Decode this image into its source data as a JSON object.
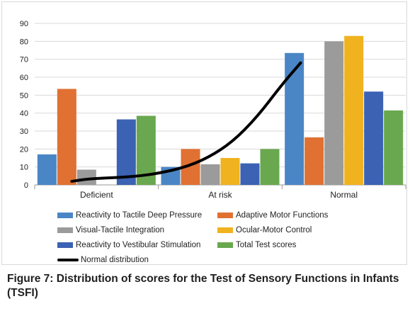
{
  "chart_data": {
    "type": "bar",
    "categories": [
      "Deficient",
      "At risk",
      "Normal"
    ],
    "ylim": [
      0,
      90
    ],
    "yticks": [
      0,
      10,
      20,
      30,
      40,
      50,
      60,
      70,
      80,
      90
    ],
    "ylabel": "",
    "series": [
      {
        "name": "Reactivity to Tactile Deep Pressure",
        "color": "#4a86c6",
        "values": [
          17,
          10,
          73.5
        ]
      },
      {
        "name": "Adaptive Motor Functions",
        "color": "#e07132",
        "values": [
          53.5,
          20,
          26.5
        ]
      },
      {
        "name": "Visual-Tactile Integration",
        "color": "#9b9b9b",
        "values": [
          8.5,
          11.5,
          80
        ]
      },
      {
        "name": "Ocular-Motor Control",
        "color": "#f0b21e",
        "values": [
          0,
          15,
          83
        ]
      },
      {
        "name": "Reactivity to Vestibular Stimulation",
        "color": "#3b62b3",
        "values": [
          36.5,
          12,
          52
        ]
      },
      {
        "name": "Total Test scores",
        "color": "#6aa84f",
        "values": [
          38.5,
          20,
          41.5
        ]
      }
    ],
    "line_series": {
      "name": "Normal distribution",
      "color": "#000000",
      "x": [
        0.3,
        0.45,
        0.65,
        0.85,
        1.0,
        1.2,
        1.4,
        1.6,
        1.8,
        2.0,
        2.15
      ],
      "y": [
        2,
        3.5,
        4,
        5,
        6.5,
        9.5,
        15,
        24,
        38,
        56,
        68
      ]
    },
    "legend_position": "bottom"
  },
  "caption": "Figure 7: Distribution of scores for the Test of Sensory Functions in Infants (TSFI)"
}
